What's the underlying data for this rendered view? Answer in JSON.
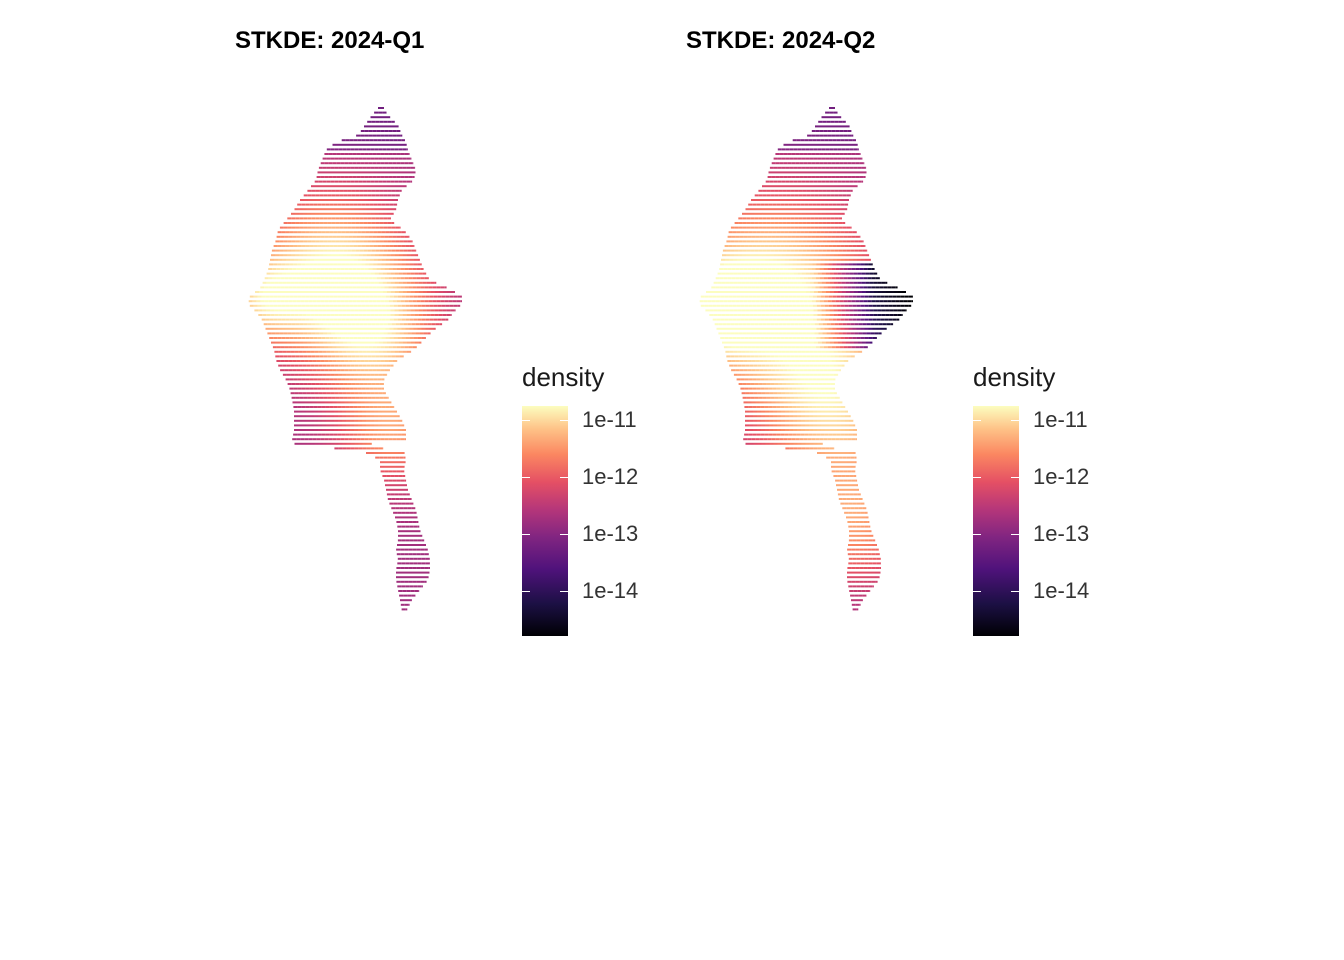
{
  "panels": [
    {
      "title": "STKDE: 2024-Q1",
      "legend": {
        "title": "density",
        "labels": [
          "1e-11",
          "1e-12",
          "1e-13",
          "1e-14"
        ]
      }
    },
    {
      "title": "STKDE: 2024-Q2",
      "legend": {
        "title": "density",
        "labels": [
          "1e-11",
          "1e-12",
          "1e-13",
          "1e-14"
        ]
      }
    }
  ],
  "colormap": [
    "#000004",
    "#1c1044",
    "#4f127b",
    "#812581",
    "#b5367a",
    "#e55064",
    "#fb8761",
    "#fec287",
    "#fcfdbf"
  ]
}
